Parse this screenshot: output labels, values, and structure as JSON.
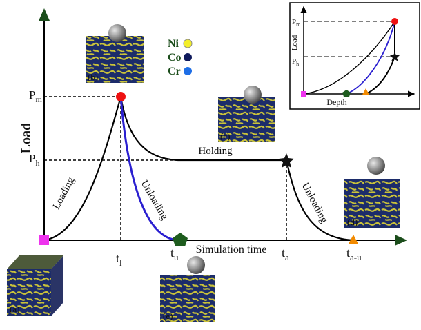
{
  "axes": {
    "y_label": "Load",
    "x_label": "Simulation time",
    "y_ticks": [
      {
        "base": "P",
        "sub": "m"
      },
      {
        "base": "P",
        "sub": "h"
      }
    ],
    "x_ticks": [
      {
        "base": "t",
        "sub": "l"
      },
      {
        "base": "t",
        "sub": "u"
      },
      {
        "base": "t",
        "sub": "a"
      },
      {
        "base": "t",
        "sub": "a-u"
      }
    ]
  },
  "annotations": {
    "loading": "Loading",
    "unloading_1": "Unloading",
    "holding": "Holding",
    "unloading_2": "Unloading"
  },
  "panels": [
    "(a)",
    "(b)",
    "(c)",
    "(d)",
    "(e)"
  ],
  "legend": [
    "Ni",
    "Co",
    "Cr"
  ],
  "inset": {
    "y_label": "Load",
    "x_label": "Depth",
    "y_ticks": [
      {
        "base": "P",
        "sub": "m"
      },
      {
        "base": "P",
        "sub": "h"
      }
    ]
  }
}
